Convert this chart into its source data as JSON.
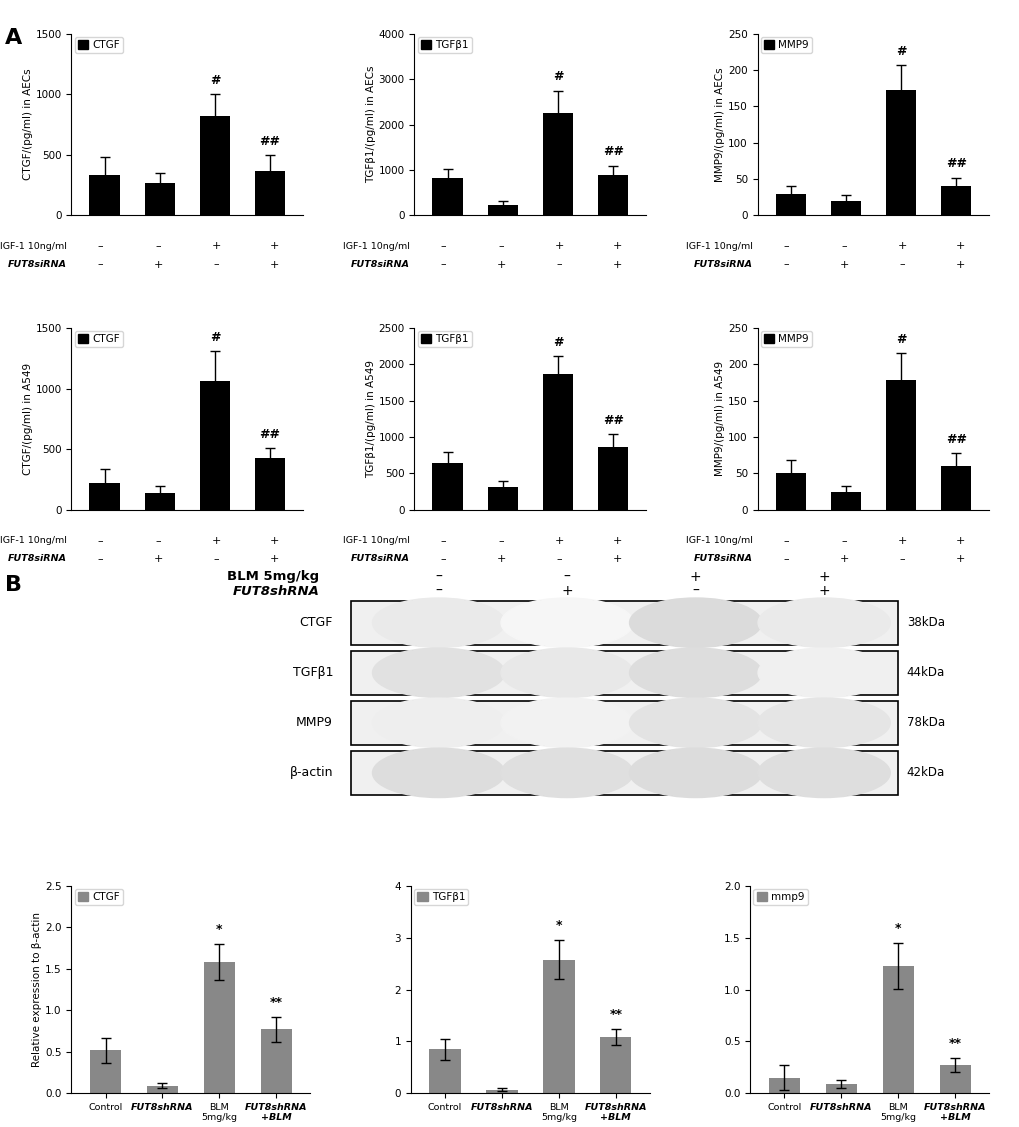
{
  "panel_A": {
    "row1": {
      "CTGF_AEC": {
        "values": [
          330,
          270,
          820,
          370
        ],
        "errors": [
          150,
          80,
          180,
          130
        ],
        "ylabel": "CTGF/(pg/ml) in AECs",
        "ylim": [
          0,
          1500
        ],
        "yticks": [
          0,
          500,
          1000,
          1500
        ],
        "legend": "CTGF",
        "annotations": [
          "#",
          "##"
        ],
        "ann_idx": [
          2,
          3
        ]
      },
      "TGFb1_AEC": {
        "values": [
          820,
          230,
          2250,
          900
        ],
        "errors": [
          200,
          80,
          500,
          200
        ],
        "ylabel": "TGFβ1/(pg/ml) in AECs",
        "ylim": [
          0,
          4000
        ],
        "yticks": [
          0,
          1000,
          2000,
          3000,
          4000
        ],
        "legend": "TGFβ1",
        "annotations": [
          "#",
          "##"
        ],
        "ann_idx": [
          2,
          3
        ]
      },
      "MMP9_AEC": {
        "values": [
          30,
          20,
          172,
          40
        ],
        "errors": [
          10,
          8,
          35,
          12
        ],
        "ylabel": "MMP9/(pg/ml) in AECs",
        "ylim": [
          0,
          250
        ],
        "yticks": [
          0,
          50,
          100,
          150,
          200,
          250
        ],
        "legend": "MMP9",
        "annotations": [
          "#",
          "##"
        ],
        "ann_idx": [
          2,
          3
        ]
      }
    },
    "row2": {
      "CTGF_A549": {
        "values": [
          220,
          140,
          1060,
          430
        ],
        "errors": [
          120,
          60,
          250,
          80
        ],
        "ylabel": "CTGF/(pg/ml) in A549",
        "ylim": [
          0,
          1500
        ],
        "yticks": [
          0,
          500,
          1000,
          1500
        ],
        "legend": "CTGF",
        "annotations": [
          "#",
          "##"
        ],
        "ann_idx": [
          2,
          3
        ]
      },
      "TGFb1_A549": {
        "values": [
          640,
          310,
          1870,
          860
        ],
        "errors": [
          150,
          80,
          240,
          180
        ],
        "ylabel": "TGFβ1/(pg/ml) in A549",
        "ylim": [
          0,
          2500
        ],
        "yticks": [
          0,
          500,
          1000,
          1500,
          2000,
          2500
        ],
        "legend": "TGFβ1",
        "annotations": [
          "#",
          "##"
        ],
        "ann_idx": [
          2,
          3
        ]
      },
      "MMP9_A549": {
        "values": [
          50,
          25,
          178,
          60
        ],
        "errors": [
          18,
          8,
          38,
          18
        ],
        "ylabel": "MMP9/(pg/ml) in A549",
        "ylim": [
          0,
          250
        ],
        "yticks": [
          0,
          50,
          100,
          150,
          200,
          250
        ],
        "legend": "MMP9",
        "annotations": [
          "#",
          "##"
        ],
        "ann_idx": [
          2,
          3
        ]
      }
    }
  },
  "panel_B_bars": {
    "CTGF": {
      "categories": [
        "Control",
        "FUT8shRNA",
        "BLM\n5mg/kg",
        "FUT8shRNA\n+BLM"
      ],
      "values": [
        0.52,
        0.09,
        1.58,
        0.77
      ],
      "errors": [
        0.15,
        0.03,
        0.22,
        0.15
      ],
      "ylabel": "Relative expression to β-actin",
      "ylim": [
        0,
        2.5
      ],
      "yticks": [
        0.0,
        0.5,
        1.0,
        1.5,
        2.0,
        2.5
      ],
      "legend": "CTGF",
      "annotations": [
        "*",
        "**"
      ],
      "ann_idx": [
        2,
        3
      ]
    },
    "TGFb1": {
      "categories": [
        "Control",
        "FUT8shRNA",
        "BLM\n5mg/kg",
        "FUT8shRNA\n+BLM"
      ],
      "values": [
        0.85,
        0.07,
        2.58,
        1.08
      ],
      "errors": [
        0.2,
        0.03,
        0.38,
        0.15
      ],
      "ylabel": "",
      "ylim": [
        0,
        4
      ],
      "yticks": [
        0,
        1,
        2,
        3,
        4
      ],
      "legend": "TGFβ1",
      "annotations": [
        "*",
        "**"
      ],
      "ann_idx": [
        2,
        3
      ]
    },
    "MMP9": {
      "categories": [
        "Control",
        "FUT8shRNA",
        "BLM\n5mg/kg",
        "FUT8shRNA\n+BLM"
      ],
      "values": [
        0.15,
        0.09,
        1.23,
        0.27
      ],
      "errors": [
        0.12,
        0.04,
        0.22,
        0.07
      ],
      "ylabel": "",
      "ylim": [
        0,
        2.0
      ],
      "yticks": [
        0.0,
        0.5,
        1.0,
        1.5,
        2.0
      ],
      "legend": "mmp9",
      "annotations": [
        "*",
        "**"
      ],
      "ann_idx": [
        2,
        3
      ]
    }
  },
  "bar_color_black": "#000000",
  "bar_color_gray": "#888888",
  "wb_labels": [
    "CTGF",
    "TGFβ1",
    "MMP9",
    "β-actin"
  ],
  "wb_kda": [
    "38kDa",
    "44kDa",
    "78kDa",
    "42kDa"
  ],
  "blm_row": [
    "–",
    "–",
    "+",
    "+"
  ],
  "fut8_row": [
    "–",
    "+",
    "–",
    "+"
  ],
  "signs_igf": [
    "–",
    "–",
    "+",
    "+"
  ],
  "signs_fut": [
    "–",
    "+",
    "–",
    "+"
  ],
  "wb_intensities": {
    "CTGF": [
      0.55,
      0.25,
      0.95,
      0.55
    ],
    "TGFβ1": [
      0.8,
      0.6,
      0.9,
      0.4
    ],
    "MMP9": [
      0.45,
      0.35,
      0.75,
      0.7
    ],
    "β-actin": [
      0.9,
      0.85,
      0.92,
      0.88
    ]
  }
}
